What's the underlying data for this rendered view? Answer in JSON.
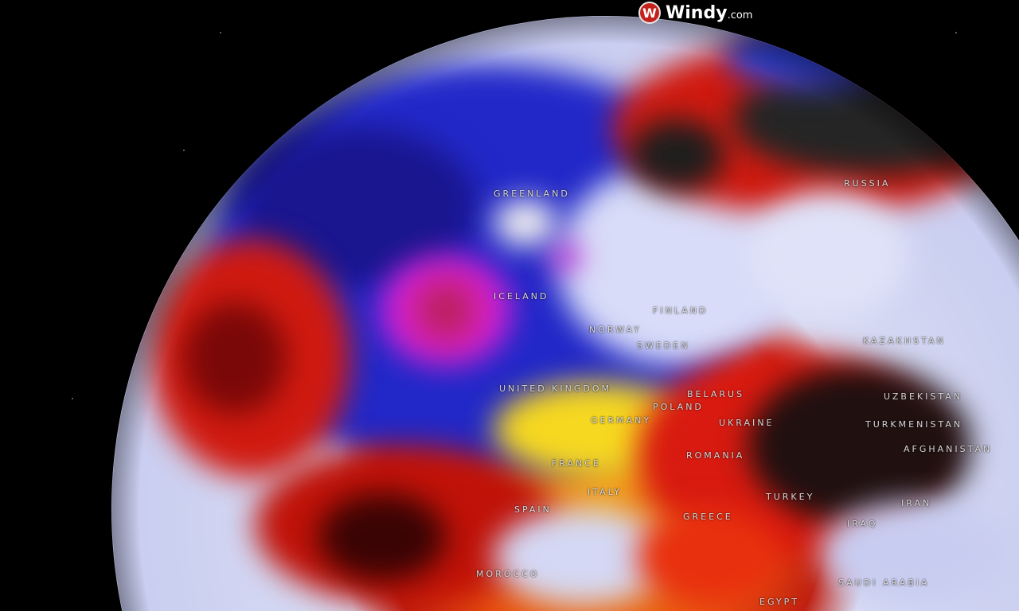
{
  "brand": {
    "logo_text": "Windy",
    "logo_suffix": ".com",
    "accent": "#c4211c"
  },
  "map": {
    "type": "globe temperature anomaly",
    "labels": [
      "GREENLAND",
      "ICELAND",
      "RUSSIA",
      "FINLAND",
      "NORWAY",
      "SWEDEN",
      "UNITED KINGDOM",
      "BELARUS",
      "POLAND",
      "GERMANY",
      "UKRAINE",
      "KAZAKHSTAN",
      "UZBEKISTAN",
      "TURKMENISTAN",
      "AFGHANISTAN",
      "ROMANIA",
      "FRANCE",
      "ITALY",
      "SPAIN",
      "TURKEY",
      "GREECE",
      "IRAN",
      "IRAQ",
      "MOROCCO",
      "SAUDI ARABIA",
      "EGYPT"
    ],
    "colors": {
      "cold": "#1a1ad0",
      "very_cold": "#e020e0",
      "warm": "#f5e020",
      "hot": "#e02010",
      "extreme": "#2a2a2a"
    }
  }
}
